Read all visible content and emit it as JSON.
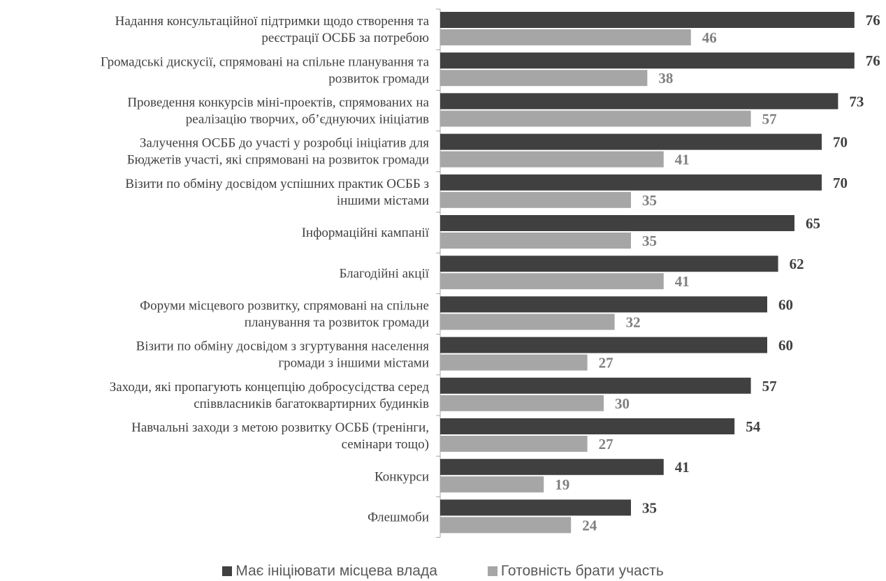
{
  "chart_data": {
    "type": "bar",
    "orientation": "horizontal",
    "categories": [
      [
        "Надання консультаційної підтримки щодо створення та",
        "реєстрації ОСББ за потребою"
      ],
      [
        "Громадські дискусії, спрямовані на спільне планування та",
        "розвиток громади"
      ],
      [
        "Проведення конкурсів міні-проектів, спрямованих на",
        "реалізацію творчих, об’єднуючих ініціатив"
      ],
      [
        "Залучення ОСББ до участі у розробці ініціатив для",
        "Бюджетів участі, які спрямовані на розвиток громади"
      ],
      [
        "Візити по обміну досвідом успішних практик ОСББ з",
        "іншими містами"
      ],
      [
        "Інформаційні кампанії"
      ],
      [
        "Благодійні акції"
      ],
      [
        "Форуми місцевого розвитку, спрямовані на спільне",
        "планування та розвиток громади"
      ],
      [
        "Візити по обміну досвідом з згуртування населення",
        "громади з іншими містами"
      ],
      [
        "Заходи, які пропагують концепцію добросусідства серед",
        "співвласників багатоквартирних будинків"
      ],
      [
        "Навчальні заходи з метою розвитку ОСББ (тренінги,",
        "семінари тощо)"
      ],
      [
        "Конкурси"
      ],
      [
        "Флешмоби"
      ]
    ],
    "series": [
      {
        "name": "Має ініціювати місцева влада",
        "color": "#404040",
        "values": [
          76,
          76,
          73,
          70,
          70,
          65,
          62,
          60,
          60,
          57,
          54,
          41,
          35
        ]
      },
      {
        "name": "Готовність брати участь",
        "color": "#a6a6a6",
        "values": [
          46,
          38,
          57,
          41,
          35,
          35,
          41,
          32,
          27,
          30,
          27,
          19,
          24
        ]
      }
    ],
    "xlim": [
      0,
      80
    ],
    "legend_position": "bottom",
    "grid": false,
    "title": "",
    "xlabel": "",
    "ylabel": ""
  },
  "legend": {
    "items": [
      {
        "label": "Має ініціювати місцева влада",
        "color": "#404040"
      },
      {
        "label": "Готовність брати участь",
        "color": "#a6a6a6"
      }
    ]
  }
}
